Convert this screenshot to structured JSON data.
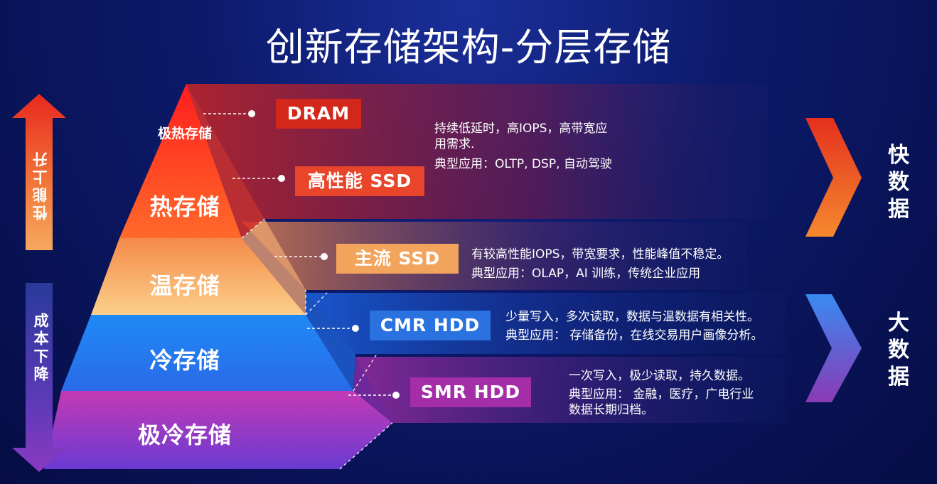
{
  "title": "创新存储架构-分层存储",
  "left_axis": {
    "top": "性能上升",
    "bottom": "成本下降"
  },
  "tiers": [
    {
      "label": "极热存储"
    },
    {
      "label": "热存储"
    },
    {
      "label": "温存储"
    },
    {
      "label": "冷存储"
    },
    {
      "label": "极冷存储"
    }
  ],
  "techs": [
    {
      "label": "DRAM",
      "color": "#d4271b"
    },
    {
      "label": "高性能 SSD",
      "color": "#e8452a"
    },
    {
      "label": "主流 SSD",
      "color": "#f3a45c"
    },
    {
      "label": "CMR HDD",
      "color": "#2a72e0"
    },
    {
      "label": "SMR HDD",
      "color": "#a42da8"
    }
  ],
  "descriptions": {
    "hot": [
      "持续低延时，高IOPS，高带宽应",
      "用需求.",
      "典型应用：OLTP,  DSP, 自动驾驶"
    ],
    "warm": [
      "有较高性能IOPS，带宽要求，性能峰值不稳定。",
      "典型应用：OLAP，AI 训练，传统企业应用"
    ],
    "cold": [
      "少量写入，多次读取，数据与温数据有相关性。",
      "典型应用：  存储备份，在线交易用户画像分析。"
    ],
    "frozen": [
      "一次写入，极少读取，持久数据。",
      "典型应用：  金融，医疗，广电行业",
      "数据长期归档。"
    ]
  },
  "right_labels": {
    "fast": [
      "快",
      "数",
      "据"
    ],
    "big": [
      "大",
      "数",
      "据"
    ]
  },
  "colors": {
    "hot": "#ff4422",
    "warm": "#f7b86a",
    "cold": "#1f7ff0",
    "frozen": "#b12fb0",
    "background": "#0a1660"
  }
}
